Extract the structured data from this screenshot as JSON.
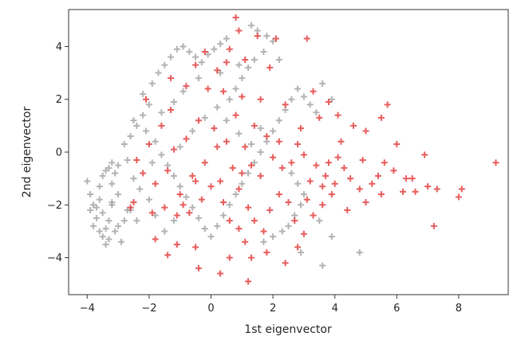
{
  "chart_data": {
    "type": "scatter",
    "xlabel": "1st eigenvector",
    "ylabel": "2nd eigenvector",
    "xlim": [
      -4.6,
      9.6
    ],
    "ylim": [
      -5.4,
      5.4
    ],
    "xticks": [
      -4,
      -2,
      0,
      2,
      4,
      6,
      8
    ],
    "yticks": [
      -4,
      -2,
      0,
      2,
      4
    ],
    "xtick_labels": [
      "−4",
      "−2",
      "0",
      "2",
      "4",
      "6",
      "8"
    ],
    "ytick_labels": [
      "−4",
      "−2",
      "0",
      "2",
      "4"
    ],
    "marker": "+",
    "grid": false,
    "series": [
      {
        "color": "#9e9e9e",
        "points": [
          [
            -4.0,
            -1.1
          ],
          [
            -3.9,
            -1.6
          ],
          [
            -3.8,
            -2.0
          ],
          [
            -3.9,
            -2.2
          ],
          [
            -3.7,
            -2.5
          ],
          [
            -3.8,
            -2.8
          ],
          [
            -3.6,
            -3.0
          ],
          [
            -3.5,
            -3.2
          ],
          [
            -3.4,
            -2.9
          ],
          [
            -3.3,
            -3.3
          ],
          [
            -3.6,
            -1.3
          ],
          [
            -3.5,
            -0.9
          ],
          [
            -3.3,
            -0.6
          ],
          [
            -3.2,
            -0.4
          ],
          [
            -3.4,
            -0.7
          ],
          [
            -3.1,
            -0.8
          ],
          [
            -3.6,
            -1.8
          ],
          [
            -3.7,
            -2.1
          ],
          [
            -3.5,
            -2.3
          ],
          [
            -3.3,
            -2.6
          ],
          [
            -3.1,
            -3.0
          ],
          [
            -2.9,
            -3.4
          ],
          [
            -2.8,
            -2.6
          ],
          [
            -2.6,
            -2.2
          ],
          [
            -3.0,
            -1.6
          ],
          [
            -3.2,
            -1.9
          ],
          [
            -3.0,
            -2.8
          ],
          [
            -3.4,
            -3.5
          ],
          [
            -3.2,
            -1.2
          ],
          [
            -3.0,
            -0.5
          ],
          [
            -2.8,
            0.3
          ],
          [
            -2.6,
            0.6
          ],
          [
            -2.4,
            1.0
          ],
          [
            -2.2,
            1.4
          ],
          [
            -2.0,
            1.8
          ],
          [
            -2.2,
            2.2
          ],
          [
            -1.9,
            2.6
          ],
          [
            -1.7,
            3.0
          ],
          [
            -1.5,
            3.3
          ],
          [
            -1.3,
            3.6
          ],
          [
            -1.1,
            3.9
          ],
          [
            -0.9,
            4.0
          ],
          [
            -0.7,
            3.8
          ],
          [
            -0.5,
            3.6
          ],
          [
            -0.3,
            3.4
          ],
          [
            -0.1,
            3.7
          ],
          [
            0.1,
            3.9
          ],
          [
            0.3,
            4.1
          ],
          [
            0.5,
            4.3
          ],
          [
            1.3,
            4.8
          ],
          [
            1.5,
            4.6
          ],
          [
            1.8,
            4.4
          ],
          [
            2.0,
            4.2
          ],
          [
            1.7,
            3.8
          ],
          [
            1.4,
            3.5
          ],
          [
            1.2,
            3.2
          ],
          [
            1.0,
            2.8
          ],
          [
            0.8,
            2.4
          ],
          [
            0.6,
            2.0
          ],
          [
            -2.5,
            1.2
          ],
          [
            -2.1,
            0.8
          ],
          [
            -1.8,
            0.4
          ],
          [
            -1.6,
            -0.1
          ],
          [
            -1.4,
            -0.5
          ],
          [
            -1.2,
            -0.9
          ],
          [
            -1.0,
            -1.3
          ],
          [
            -0.8,
            -1.7
          ],
          [
            -0.6,
            -2.1
          ],
          [
            -0.4,
            -2.5
          ],
          [
            -0.2,
            -2.9
          ],
          [
            0.0,
            -3.2
          ],
          [
            0.2,
            -2.8
          ],
          [
            0.4,
            -2.4
          ],
          [
            0.6,
            -2.0
          ],
          [
            0.8,
            -1.6
          ],
          [
            1.0,
            -1.2
          ],
          [
            1.2,
            -0.8
          ],
          [
            1.4,
            -0.4
          ],
          [
            1.6,
            0.0
          ],
          [
            1.8,
            0.4
          ],
          [
            2.0,
            0.8
          ],
          [
            2.2,
            1.2
          ],
          [
            2.4,
            1.6
          ],
          [
            2.6,
            2.0
          ],
          [
            2.8,
            2.4
          ],
          [
            3.0,
            2.1
          ],
          [
            3.2,
            1.8
          ],
          [
            3.4,
            1.5
          ],
          [
            3.6,
            2.6
          ],
          [
            3.9,
            2.0
          ],
          [
            2.6,
            -0.8
          ],
          [
            2.8,
            -1.2
          ],
          [
            3.0,
            -1.6
          ],
          [
            2.9,
            -2.0
          ],
          [
            2.7,
            -2.4
          ],
          [
            2.5,
            -2.8
          ],
          [
            2.3,
            -3.0
          ],
          [
            2.0,
            -3.2
          ],
          [
            1.7,
            -3.4
          ],
          [
            2.9,
            -3.8
          ],
          [
            3.6,
            -4.3
          ],
          [
            4.8,
            -3.8
          ],
          [
            3.9,
            -3.2
          ],
          [
            3.5,
            -2.6
          ],
          [
            -1.2,
            -2.6
          ],
          [
            -1.5,
            -3.0
          ],
          [
            -1.8,
            -2.4
          ],
          [
            -2.0,
            -1.8
          ],
          [
            -2.3,
            -1.4
          ],
          [
            -2.5,
            -1.0
          ],
          [
            -2.7,
            -0.3
          ],
          [
            -1.9,
            -0.4
          ],
          [
            -1.0,
            0.2
          ],
          [
            -0.6,
            0.8
          ],
          [
            -0.2,
            1.3
          ],
          [
            0.2,
            1.7
          ],
          [
            0.5,
            1.2
          ],
          [
            0.9,
            0.7
          ],
          [
            1.3,
            0.3
          ],
          [
            1.6,
            0.9
          ],
          [
            -0.9,
            2.3
          ],
          [
            -1.2,
            1.9
          ],
          [
            -1.6,
            1.5
          ],
          [
            -0.4,
            2.8
          ],
          [
            0.3,
            3.0
          ],
          [
            0.9,
            3.3
          ],
          [
            2.2,
            3.5
          ],
          [
            -2.7,
            -2.2
          ],
          [
            -2.4,
            -2.6
          ],
          [
            -3.2,
            -2.0
          ]
        ]
      },
      {
        "color": "#e03030",
        "points": [
          [
            0.8,
            5.1
          ],
          [
            0.9,
            4.6
          ],
          [
            1.5,
            4.4
          ],
          [
            2.1,
            4.3
          ],
          [
            3.1,
            4.3
          ],
          [
            0.6,
            3.9
          ],
          [
            1.1,
            3.5
          ],
          [
            -0.5,
            3.3
          ],
          [
            0.2,
            3.1
          ],
          [
            -1.3,
            2.8
          ],
          [
            -0.8,
            2.5
          ],
          [
            0.4,
            2.3
          ],
          [
            1.0,
            2.1
          ],
          [
            1.6,
            2.0
          ],
          [
            2.4,
            1.8
          ],
          [
            3.3,
            2.3
          ],
          [
            3.8,
            1.9
          ],
          [
            3.5,
            1.3
          ],
          [
            4.1,
            1.4
          ],
          [
            4.6,
            1.0
          ],
          [
            5.0,
            0.8
          ],
          [
            5.5,
            1.3
          ],
          [
            5.7,
            1.8
          ],
          [
            6.0,
            0.3
          ],
          [
            6.9,
            -0.1
          ],
          [
            9.2,
            -0.4
          ],
          [
            5.6,
            -0.4
          ],
          [
            5.9,
            -0.7
          ],
          [
            6.5,
            -1.0
          ],
          [
            7.0,
            -1.3
          ],
          [
            7.3,
            -1.4
          ],
          [
            8.1,
            -1.4
          ],
          [
            8.0,
            -1.7
          ],
          [
            7.2,
            -2.8
          ],
          [
            6.6,
            -1.5
          ],
          [
            6.2,
            -1.5
          ],
          [
            5.5,
            -1.6
          ],
          [
            5.2,
            -1.2
          ],
          [
            5.0,
            -1.9
          ],
          [
            4.8,
            -1.4
          ],
          [
            4.5,
            -1.0
          ],
          [
            4.3,
            -0.6
          ],
          [
            4.1,
            -0.2
          ],
          [
            3.8,
            -0.4
          ],
          [
            3.7,
            -0.9
          ],
          [
            3.6,
            -1.3
          ],
          [
            3.4,
            -0.5
          ],
          [
            3.2,
            -1.1
          ],
          [
            3.0,
            -0.1
          ],
          [
            2.8,
            0.3
          ],
          [
            2.6,
            -0.4
          ],
          [
            2.3,
            -0.6
          ],
          [
            2.0,
            -0.2
          ],
          [
            1.8,
            0.6
          ],
          [
            1.6,
            -0.9
          ],
          [
            1.3,
            -0.5
          ],
          [
            1.1,
            0.2
          ],
          [
            0.9,
            -1.4
          ],
          [
            0.7,
            -0.6
          ],
          [
            0.5,
            0.4
          ],
          [
            0.3,
            -1.1
          ],
          [
            0.1,
            0.9
          ],
          [
            -0.2,
            -0.4
          ],
          [
            -0.4,
            1.2
          ],
          [
            -0.6,
            -0.9
          ],
          [
            -0.8,
            0.5
          ],
          [
            -1.0,
            -1.6
          ],
          [
            -1.2,
            0.1
          ],
          [
            -1.4,
            -0.7
          ],
          [
            -1.6,
            1.0
          ],
          [
            -1.8,
            -1.2
          ],
          [
            -2.0,
            0.3
          ],
          [
            -2.2,
            -0.8
          ],
          [
            -2.5,
            -1.9
          ],
          [
            -2.6,
            -2.1
          ],
          [
            -2.4,
            -0.3
          ],
          [
            -1.9,
            -2.3
          ],
          [
            -1.5,
            -2.1
          ],
          [
            -1.1,
            -2.4
          ],
          [
            -0.9,
            -2.0
          ],
          [
            -0.7,
            -2.3
          ],
          [
            -0.3,
            -1.8
          ],
          [
            0.0,
            -1.3
          ],
          [
            0.4,
            -1.9
          ],
          [
            0.6,
            -2.6
          ],
          [
            0.9,
            -2.9
          ],
          [
            1.2,
            -2.1
          ],
          [
            1.4,
            -2.6
          ],
          [
            1.7,
            -3.0
          ],
          [
            1.9,
            -2.2
          ],
          [
            2.2,
            -1.6
          ],
          [
            2.5,
            -1.9
          ],
          [
            2.7,
            -2.6
          ],
          [
            3.0,
            -3.1
          ],
          [
            3.3,
            -2.4
          ],
          [
            3.6,
            -2.0
          ],
          [
            3.9,
            -1.6
          ],
          [
            1.8,
            -3.8
          ],
          [
            1.1,
            -3.4
          ],
          [
            1.3,
            -4.0
          ],
          [
            0.3,
            -4.6
          ],
          [
            1.2,
            -4.9
          ],
          [
            -0.4,
            -4.4
          ],
          [
            -1.4,
            -3.9
          ],
          [
            -1.1,
            -3.5
          ],
          [
            -1.8,
            -3.3
          ],
          [
            2.4,
            -4.2
          ],
          [
            2.8,
            -3.6
          ],
          [
            0.6,
            -4.0
          ],
          [
            -0.5,
            -3.6
          ],
          [
            0.8,
            1.4
          ],
          [
            1.4,
            1.0
          ],
          [
            -0.1,
            2.4
          ],
          [
            2.2,
            0.4
          ],
          [
            2.9,
            0.9
          ],
          [
            4.2,
            0.4
          ],
          [
            4.9,
            -0.3
          ],
          [
            4.0,
            -1.2
          ],
          [
            3.1,
            -1.8
          ],
          [
            -0.5,
            -1.1
          ],
          [
            0.2,
            0.2
          ],
          [
            1.0,
            -0.8
          ],
          [
            -1.3,
            1.6
          ],
          [
            -0.2,
            3.8
          ],
          [
            1.9,
            3.2
          ],
          [
            0.5,
            3.4
          ],
          [
            -2.1,
            2.0
          ],
          [
            5.4,
            -0.9
          ],
          [
            4.4,
            -2.2
          ],
          [
            6.3,
            -1.0
          ]
        ]
      }
    ]
  }
}
